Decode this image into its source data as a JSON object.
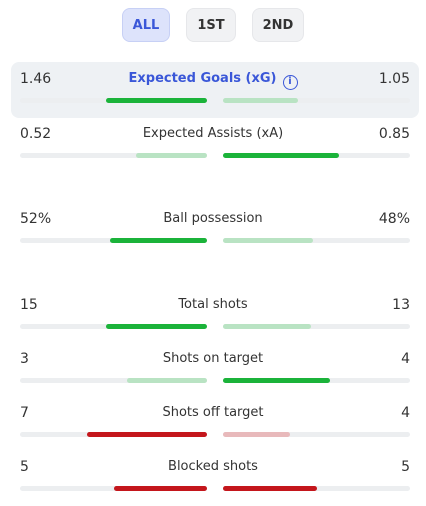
{
  "tabs": [
    "ALL",
    "1ST",
    "2ND"
  ],
  "colors": {
    "accent": "#3a57d8",
    "green_strong": "#1bb33a",
    "green_light": "#b9e3c3",
    "red_strong": "#c4161c",
    "red_light": "#e8b9bb",
    "track": "#eceef0"
  },
  "stats": [
    {
      "label": "Expected Goals (xG)",
      "left": "1.46",
      "right": "1.05",
      "left_fill": 0.54,
      "right_fill": 0.4,
      "left_color": "green_strong",
      "right_color": "green_light",
      "highlight": true,
      "info_icon": "i"
    },
    {
      "label": "Expected Assists (xA)",
      "left": "0.52",
      "right": "0.85",
      "left_fill": 0.38,
      "right_fill": 0.62,
      "left_color": "green_light",
      "right_color": "green_strong"
    },
    {
      "label": "Ball possession",
      "left": "52%",
      "right": "48%",
      "left_fill": 0.52,
      "right_fill": 0.48,
      "left_color": "green_strong",
      "right_color": "green_light"
    },
    {
      "label": "Total shots",
      "left": "15",
      "right": "13",
      "left_fill": 0.54,
      "right_fill": 0.47,
      "left_color": "green_strong",
      "right_color": "green_light"
    },
    {
      "label": "Shots on target",
      "left": "3",
      "right": "4",
      "left_fill": 0.43,
      "right_fill": 0.57,
      "left_color": "green_light",
      "right_color": "green_strong"
    },
    {
      "label": "Shots off target",
      "left": "7",
      "right": "4",
      "left_fill": 0.64,
      "right_fill": 0.36,
      "left_color": "red_strong",
      "right_color": "red_light"
    },
    {
      "label": "Blocked shots",
      "left": "5",
      "right": "5",
      "left_fill": 0.5,
      "right_fill": 0.5,
      "left_color": "red_strong",
      "right_color": "red_strong"
    }
  ]
}
